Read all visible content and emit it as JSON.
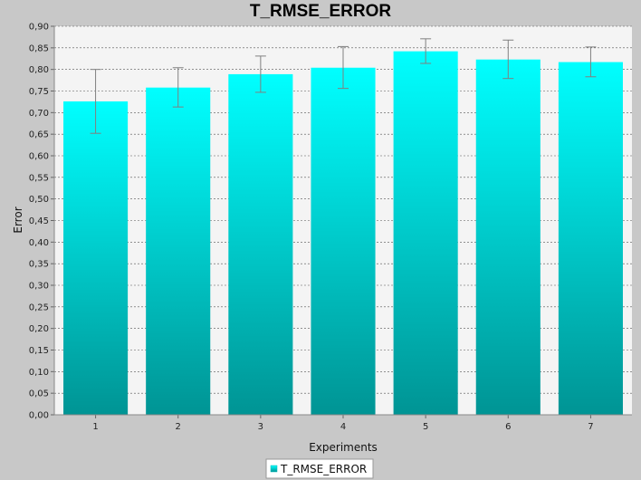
{
  "chart_data": {
    "type": "bar",
    "title": "T_RMSE_ERROR",
    "xlabel": "Experiments",
    "ylabel": "Error",
    "categories": [
      "1",
      "2",
      "3",
      "4",
      "5",
      "6",
      "7"
    ],
    "series": [
      {
        "name": "T_RMSE_ERROR",
        "values": [
          0.726,
          0.758,
          0.789,
          0.804,
          0.842,
          0.823,
          0.817
        ],
        "error_low": [
          0.652,
          0.713,
          0.747,
          0.756,
          0.814,
          0.779,
          0.783
        ],
        "error_high": [
          0.8,
          0.804,
          0.831,
          0.853,
          0.871,
          0.868,
          0.852
        ]
      }
    ],
    "ylim": [
      0,
      0.9
    ],
    "yticks": [
      "0,00",
      "0,05",
      "0,10",
      "0,15",
      "0,20",
      "0,25",
      "0,30",
      "0,35",
      "0,40",
      "0,45",
      "0,50",
      "0,55",
      "0,60",
      "0,65",
      "0,70",
      "0,75",
      "0,80",
      "0,85",
      "0,90"
    ],
    "grid": true,
    "legend_position": "bottom-center",
    "colors": {
      "bar_top": "#00ffff",
      "bar_bottom": "#009494",
      "plot_background": "#f4f4f4",
      "outer_background": "#c8c8c8",
      "error_bar": "#808080",
      "grid": "#555555"
    }
  }
}
